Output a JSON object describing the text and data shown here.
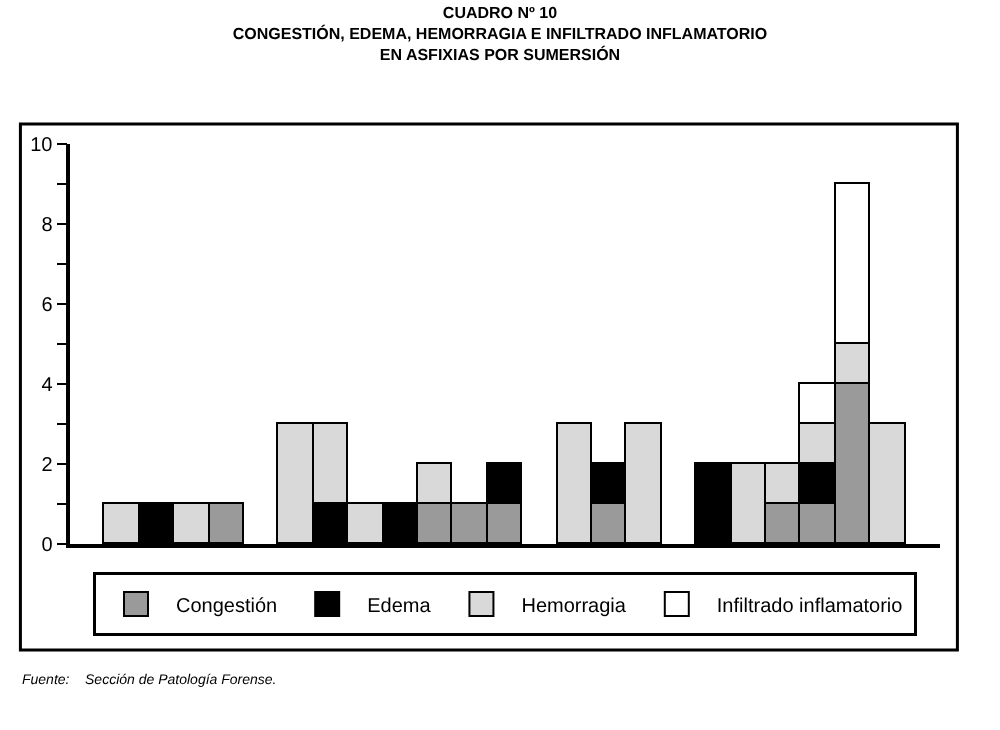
{
  "chart_data": {
    "type": "bar",
    "stacked": true,
    "title": "CUADRO Nº 10\nCONGESTIÓN, EDEMA, HEMORRAGIA E INFILTRADO INFLAMATORIO\nEN ASFIXIAS POR SUMERSIÓN",
    "categories": [
      null,
      null,
      null,
      null,
      null,
      null,
      null,
      null,
      null,
      null,
      null,
      null,
      null,
      null,
      null,
      null,
      null,
      null,
      null,
      null,
      null,
      null,
      null,
      null,
      null
    ],
    "series": [
      {
        "name": "Congestión",
        "color": "#9a9a9a",
        "values": [
          null,
          null,
          null,
          null,
          1,
          null,
          null,
          null,
          null,
          null,
          1,
          1,
          1,
          null,
          null,
          1,
          null,
          null,
          null,
          null,
          1,
          1,
          4,
          null,
          null
        ]
      },
      {
        "name": "Edema",
        "color": "#000000",
        "values": [
          null,
          null,
          1,
          null,
          null,
          null,
          null,
          1,
          null,
          1,
          null,
          null,
          1,
          null,
          null,
          1,
          null,
          null,
          2,
          null,
          null,
          1,
          null,
          null,
          null
        ]
      },
      {
        "name": "Hemorragia",
        "color": "#d9d9d9",
        "values": [
          null,
          1,
          null,
          1,
          null,
          null,
          3,
          2,
          1,
          null,
          1,
          null,
          null,
          null,
          3,
          null,
          3,
          null,
          null,
          2,
          1,
          1,
          1,
          3,
          null
        ]
      },
      {
        "name": "Infiltrado inflamatorio",
        "color": "#ffffff",
        "values": [
          null,
          null,
          null,
          null,
          null,
          null,
          null,
          null,
          null,
          null,
          null,
          null,
          null,
          null,
          null,
          null,
          null,
          null,
          null,
          null,
          null,
          1,
          4,
          null,
          null
        ]
      }
    ],
    "ylim": [
      0,
      10
    ],
    "yticks": [
      0,
      {
        "value": 1,
        "label": null
      },
      2,
      {
        "value": 3,
        "label": null
      },
      4,
      {
        "value": 5,
        "label": null
      },
      6,
      {
        "value": 7,
        "label": null
      },
      8,
      {
        "value": 9,
        "label": null
      },
      10
    ],
    "grid": false,
    "legend": "bottom",
    "annotations": [
      "Fuente:    Sección de Patología Forense."
    ]
  }
}
